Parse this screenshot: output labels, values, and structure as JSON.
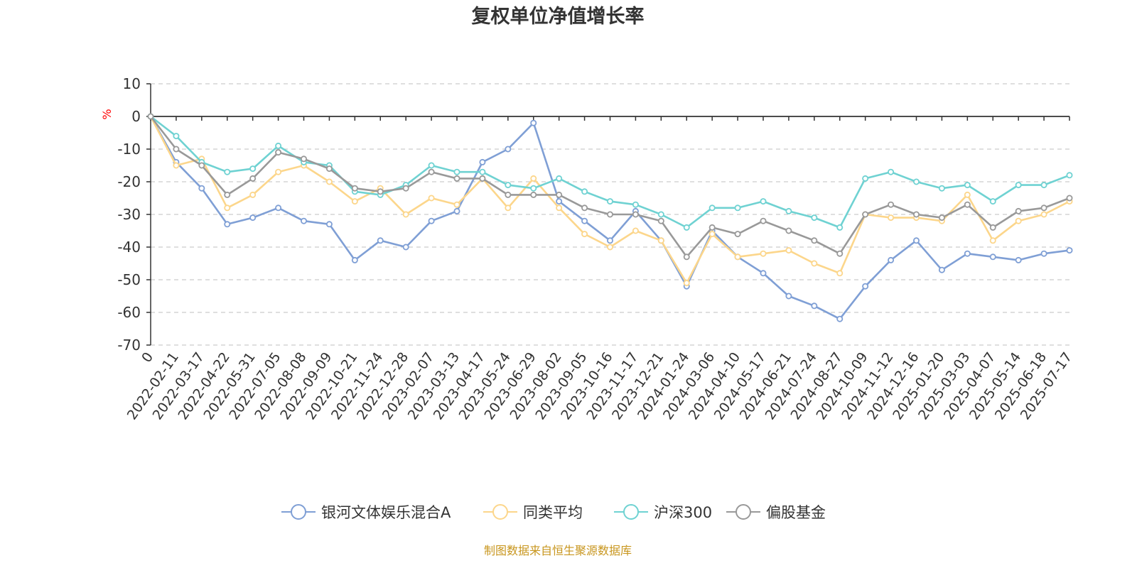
{
  "colors": {
    "accent_source": "#c8961e",
    "unit_label": "#ff0000"
  },
  "source_note": "制图数据来自恒生聚源数据库",
  "chart_data": {
    "type": "line",
    "title": "复权单位净值增长率",
    "ylabel": "%",
    "ylim": [
      -70,
      10
    ],
    "yticks": [
      10,
      0,
      -10,
      -20,
      -30,
      -40,
      -50,
      -60,
      -70
    ],
    "grid": true,
    "legend_position": "bottom",
    "x": [
      "0",
      "2022-02-11",
      "2022-03-17",
      "2022-04-22",
      "2022-05-31",
      "2022-07-05",
      "2022-08-08",
      "2022-09-09",
      "2022-10-21",
      "2022-11-24",
      "2022-12-28",
      "2023-02-07",
      "2023-03-13",
      "2023-04-17",
      "2023-05-24",
      "2023-06-29",
      "2023-08-02",
      "2023-09-05",
      "2023-10-16",
      "2023-11-17",
      "2023-12-21",
      "2024-01-24",
      "2024-03-06",
      "2024-04-10",
      "2024-05-17",
      "2024-06-21",
      "2024-07-24",
      "2024-08-27",
      "2024-10-09",
      "2024-11-12",
      "2024-12-16",
      "2025-01-20",
      "2025-03-03",
      "2025-04-07",
      "2025-05-14",
      "2025-06-18",
      "2025-07-17"
    ],
    "series": [
      {
        "name": "银河文体娱乐混合A",
        "color": "#7f9fd5",
        "values": [
          0,
          -14,
          -22,
          -33,
          -31,
          -28,
          -32,
          -33,
          -44,
          -38,
          -40,
          -32,
          -29,
          -14,
          -10,
          -2,
          -26,
          -32,
          -38,
          -29,
          -38,
          -52,
          -35,
          -43,
          -48,
          -55,
          -58,
          -62,
          -52,
          -44,
          -38,
          -47,
          -42,
          -43,
          -44,
          -42,
          -41
        ]
      },
      {
        "name": "同类平均",
        "color": "#fcd68b",
        "values": [
          0,
          -15,
          -13,
          -28,
          -24,
          -17,
          -15,
          -20,
          -26,
          -22,
          -30,
          -25,
          -27,
          -19,
          -28,
          -19,
          -28,
          -36,
          -40,
          -35,
          -38,
          -51,
          -36,
          -43,
          -42,
          -41,
          -45,
          -48,
          -30,
          -31,
          -31,
          -32,
          -24,
          -38,
          -32,
          -30,
          -26
        ]
      },
      {
        "name": "沪深300",
        "color": "#6fd2d2",
        "values": [
          0,
          -6,
          -14,
          -17,
          -16,
          -9,
          -14,
          -15,
          -23,
          -24,
          -21,
          -15,
          -17,
          -17,
          -21,
          -22,
          -19,
          -23,
          -26,
          -27,
          -30,
          -34,
          -28,
          -28,
          -26,
          -29,
          -31,
          -34,
          -19,
          -17,
          -20,
          -22,
          -21,
          -26,
          -21,
          -21,
          -18
        ]
      },
      {
        "name": "偏股基金",
        "color": "#999999",
        "values": [
          0,
          -10,
          -15,
          -24,
          -19,
          -11,
          -13,
          -16,
          -22,
          -23,
          -22,
          -17,
          -19,
          -19,
          -24,
          -24,
          -24,
          -28,
          -30,
          -30,
          -32,
          -43,
          -34,
          -36,
          -32,
          -35,
          -38,
          -42,
          -30,
          -27,
          -30,
          -31,
          -27,
          -34,
          -29,
          -28,
          -25
        ]
      }
    ]
  }
}
